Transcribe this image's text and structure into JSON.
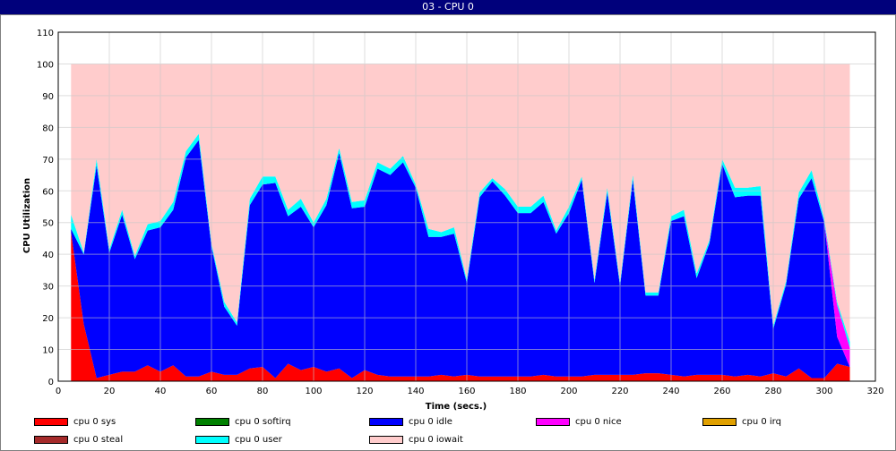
{
  "window": {
    "title": "03 - CPU 0"
  },
  "chart_data": {
    "type": "area",
    "title": "",
    "xlabel": "Time (secs.)",
    "ylabel": "CPU Utilization",
    "xlim": [
      0,
      320
    ],
    "ylim": [
      0,
      110
    ],
    "xticks": [
      0,
      20,
      40,
      60,
      80,
      100,
      120,
      140,
      160,
      180,
      200,
      220,
      240,
      260,
      280,
      300,
      320
    ],
    "yticks": [
      0,
      10,
      20,
      30,
      40,
      50,
      60,
      70,
      80,
      90,
      100,
      110
    ],
    "grid": true,
    "legend_position": "bottom",
    "x": [
      5,
      10,
      15,
      20,
      25,
      30,
      35,
      40,
      45,
      50,
      55,
      60,
      65,
      70,
      75,
      80,
      85,
      90,
      95,
      100,
      105,
      110,
      115,
      120,
      125,
      130,
      135,
      140,
      145,
      150,
      155,
      160,
      165,
      170,
      175,
      180,
      185,
      190,
      195,
      200,
      205,
      210,
      215,
      220,
      225,
      230,
      235,
      240,
      245,
      250,
      255,
      260,
      265,
      270,
      275,
      280,
      285,
      290,
      295,
      300,
      305,
      310
    ],
    "series": [
      {
        "name": "cpu 0 sys",
        "color": "#ff0000",
        "values": [
          47,
          18,
          1,
          2,
          3,
          3,
          5,
          3,
          5,
          1.5,
          1.5,
          3,
          2,
          2,
          4,
          4.5,
          1,
          5.5,
          3.5,
          4.5,
          3,
          4,
          1,
          3.5,
          2,
          1.5,
          1.5,
          1.5,
          1.5,
          2,
          1.5,
          2,
          1.5,
          1.5,
          1.5,
          1.5,
          1.5,
          2,
          1.5,
          1.5,
          1.5,
          2,
          2,
          2,
          2,
          2.5,
          2.5,
          2,
          1.5,
          2,
          2,
          2,
          1.5,
          2,
          1.5,
          2.5,
          1.5,
          4,
          1,
          1,
          5.5,
          4.5
        ]
      },
      {
        "name": "cpu 0 softirq",
        "color": "#008000",
        "values": [
          0,
          0,
          0,
          0,
          0,
          0,
          0,
          0,
          0,
          0,
          0,
          0,
          0,
          0,
          0,
          0,
          0,
          0,
          0,
          0,
          0,
          0,
          0,
          0,
          0,
          0,
          0,
          0,
          0,
          0,
          0,
          0,
          0,
          0,
          0,
          0,
          0,
          0,
          0,
          0,
          0,
          0,
          0,
          0,
          0,
          0,
          0,
          0,
          0,
          0,
          0,
          0,
          0,
          0,
          0,
          0,
          0,
          0,
          0,
          0,
          0,
          0
        ]
      },
      {
        "name": "cpu 0 idle",
        "color": "#0000ff",
        "values": [
          1,
          22,
          67,
          38.5,
          49.5,
          35.5,
          42.5,
          45.5,
          49,
          69,
          74.5,
          39.5,
          21.5,
          15.5,
          51.5,
          57.5,
          61.5,
          46.5,
          51.5,
          44,
          52.5,
          68,
          53.5,
          51.5,
          65,
          63.5,
          67.5,
          59.5,
          44,
          43.5,
          45,
          29,
          56.5,
          61.5,
          57,
          51.5,
          51.5,
          54.5,
          45,
          51.5,
          62,
          29,
          57.5,
          28,
          61.5,
          24.5,
          24.5,
          48.5,
          50.5,
          30.5,
          41.5,
          66.5,
          56.5,
          56.5,
          57,
          14,
          29,
          53.5,
          63,
          49,
          8.5,
          0
        ]
      },
      {
        "name": "cpu 0 nice",
        "color": "#ff00ff",
        "values": [
          0,
          0,
          0,
          0,
          0,
          0,
          0,
          0,
          0,
          0,
          0,
          0,
          0,
          0,
          0,
          0,
          0,
          0,
          0,
          0,
          0,
          0,
          0,
          0,
          0,
          0,
          0,
          0,
          0,
          0,
          0,
          0,
          0,
          0,
          0,
          0,
          0,
          0,
          0,
          0,
          0,
          0,
          0,
          0,
          0,
          0,
          0,
          0,
          0,
          0,
          0,
          0,
          0,
          0,
          0,
          0,
          0,
          0,
          0,
          0,
          10,
          6
        ]
      },
      {
        "name": "cpu 0 irq",
        "color": "#e0a000",
        "values": [
          0,
          0,
          0,
          0,
          0,
          0,
          0,
          0,
          0,
          0,
          0,
          0,
          0,
          0,
          0,
          0,
          0,
          0,
          0,
          0,
          0,
          0,
          0,
          0,
          0,
          0,
          0,
          0,
          0,
          0,
          0,
          0,
          0,
          0,
          0,
          0,
          0,
          0,
          0,
          0,
          0,
          0,
          0,
          0,
          0,
          0,
          0,
          0,
          0,
          0,
          0,
          0,
          0,
          0,
          0,
          0,
          0,
          0,
          0,
          0,
          0,
          0
        ]
      },
      {
        "name": "cpu 0 steal",
        "color": "#a52a2a",
        "values": [
          0,
          0,
          0,
          0,
          0,
          0,
          0,
          0,
          0,
          0,
          0,
          0,
          0,
          0,
          0,
          0,
          0,
          0,
          0,
          0,
          0,
          0,
          0,
          0,
          0,
          0,
          0,
          0,
          0,
          0,
          0,
          0,
          0,
          0,
          0,
          0,
          0,
          0,
          0,
          0,
          0,
          0,
          0,
          0,
          0,
          0,
          0,
          0,
          0,
          0,
          0,
          0,
          0,
          0,
          0,
          0,
          0,
          0,
          0,
          0,
          0,
          0
        ]
      },
      {
        "name": "cpu 0 user",
        "color": "#00ffff",
        "values": [
          4.5,
          0.5,
          2,
          1,
          1.5,
          1,
          2,
          2,
          2.5,
          2,
          2,
          1,
          1.5,
          1,
          2,
          2.5,
          2,
          2,
          2.5,
          1.5,
          2,
          1.5,
          2,
          2,
          2,
          2,
          2,
          1,
          2.5,
          1.5,
          2,
          1,
          1.5,
          1,
          2,
          2,
          2,
          2,
          1,
          2,
          1,
          1,
          1.5,
          1,
          1.5,
          1,
          1,
          1.5,
          2,
          1.5,
          1,
          1.5,
          3,
          2.5,
          3,
          1,
          1,
          2,
          2.5,
          1,
          1,
          2
        ]
      },
      {
        "name": "cpu 0 iowait",
        "color": "#ffcccc",
        "values": [
          47.5,
          59.5,
          30,
          58.5,
          46,
          60.5,
          50.5,
          49.5,
          43.5,
          27.5,
          22,
          56.5,
          75,
          81.5,
          42.5,
          35.5,
          35.5,
          46,
          42.5,
          50,
          42.5,
          26.5,
          43.5,
          43,
          31,
          33,
          29,
          38,
          52,
          53,
          51.5,
          68,
          40.5,
          36,
          39.5,
          45,
          45,
          41.5,
          52.5,
          45,
          35.5,
          68,
          39,
          69,
          35,
          72,
          72,
          48,
          46,
          66,
          55.5,
          30,
          39,
          39,
          38.5,
          82.5,
          68.5,
          40.5,
          33.5,
          49,
          75,
          87.5
        ]
      }
    ]
  }
}
